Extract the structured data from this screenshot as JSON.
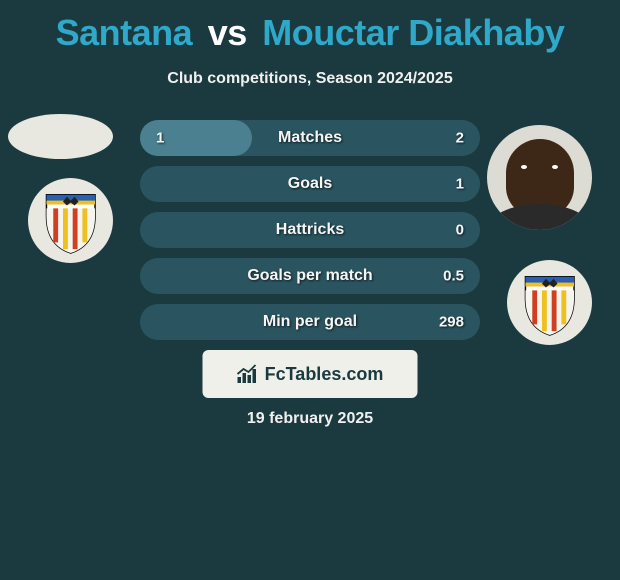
{
  "title": {
    "player1": "Santana",
    "vs": "vs",
    "player2": "Mouctar Diakhaby"
  },
  "subtitle": "Club competitions, Season 2024/2025",
  "date": "19 february 2025",
  "brand": "FcTables.com",
  "colors": {
    "background": "#1a3a3f",
    "accent": "#2fa8c9",
    "bar_track": "#2a5560",
    "bar_fill": "#4a8090",
    "brand_box_bg": "#f0f0ea",
    "text": "#ffffff",
    "avatar_bg": "#e8e8e0"
  },
  "bars": [
    {
      "label": "Matches",
      "left": "1",
      "right": "2",
      "fill_pct": 33
    },
    {
      "label": "Goals",
      "left": "",
      "right": "1",
      "fill_pct": 0
    },
    {
      "label": "Hattricks",
      "left": "",
      "right": "0",
      "fill_pct": 0
    },
    {
      "label": "Goals per match",
      "left": "",
      "right": "0.5",
      "fill_pct": 0
    },
    {
      "label": "Min per goal",
      "left": "",
      "right": "298",
      "fill_pct": 0
    }
  ],
  "avatars": {
    "left_player_icon": "player-silhouette",
    "left_club_icon": "valencia-crest",
    "right_player_icon": "player-photo",
    "right_club_icon": "valencia-crest"
  }
}
